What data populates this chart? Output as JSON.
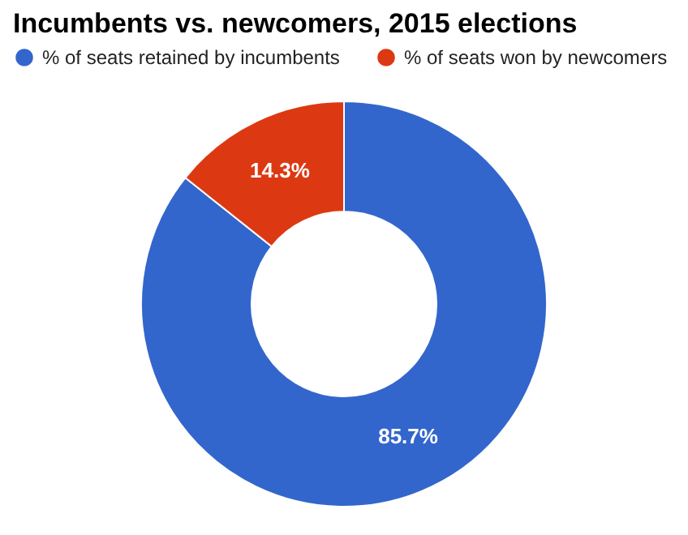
{
  "chart_data": {
    "type": "donut",
    "title": "Incumbents vs. newcomers, 2015 elections",
    "categories": [
      "% of seats retained by incumbents",
      "% of seats won by newcomers"
    ],
    "values": [
      85.7,
      14.3
    ],
    "colors": [
      "#3366cc",
      "#dc3912"
    ],
    "value_labels": [
      "85.7%",
      "14.3%"
    ],
    "legend": "top left"
  }
}
